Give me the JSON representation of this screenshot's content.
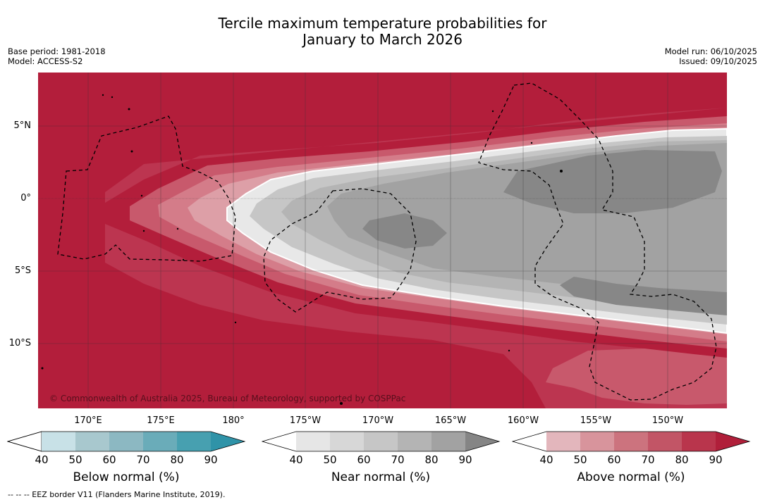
{
  "title": {
    "line1": "Tercile maximum temperature probabilities for",
    "line2": "January to March 2026"
  },
  "meta_left": {
    "base_period": "Base period: 1981-2018",
    "model": "Model: ACCESS-S2"
  },
  "meta_right": {
    "model_run": "Model run: 06/10/2025",
    "issued": "Issued: 09/10/2025"
  },
  "map": {
    "lat_labels": [
      "5°N",
      "0°",
      "5°S",
      "10°S"
    ],
    "lon_labels": [
      "170°E",
      "175°E",
      "180°",
      "175°W",
      "170°W",
      "165°W",
      "160°W",
      "155°W",
      "150°W"
    ],
    "copyright": "© Commonwealth of Australia 2025, Bureau of Meteorology, supported by COSPPac",
    "colors": {
      "above_high": "#b31e3b",
      "above_80": "#bc3550",
      "above_70": "#c8596c",
      "above_60": "#d47c89",
      "above_50": "#dd9fa7",
      "near_50": "#d9d9d9",
      "near_60": "#c6c6c6",
      "near_70": "#b2b2b2",
      "near_80": "#a2a2a2",
      "near_90": "#878787"
    }
  },
  "colorbars": [
    {
      "name": "Below normal (%)",
      "ticks": [
        "40",
        "50",
        "60",
        "70",
        "80",
        "90"
      ],
      "colors": [
        "#ffffff",
        "#c8e1e7",
        "#a8c8ce",
        "#8cb8c2",
        "#6aacb9",
        "#47a0b0",
        "#2f93a8"
      ]
    },
    {
      "name": "Near normal (%)",
      "ticks": [
        "40",
        "50",
        "60",
        "70",
        "80",
        "90"
      ],
      "colors": [
        "#ffffff",
        "#e6e6e6",
        "#d7d7d7",
        "#c6c6c6",
        "#b4b4b4",
        "#a2a2a2",
        "#858585"
      ]
    },
    {
      "name": "Above normal (%)",
      "ticks": [
        "40",
        "50",
        "60",
        "70",
        "80",
        "90"
      ],
      "colors": [
        "#ffffff",
        "#e3b6bc",
        "#d8949c",
        "#cc737e",
        "#c25566",
        "#b9354c",
        "#b01f3a"
      ]
    }
  ],
  "footnote": "--  --  -- EEZ border V11 (Flanders Marine Institute, 2019)."
}
